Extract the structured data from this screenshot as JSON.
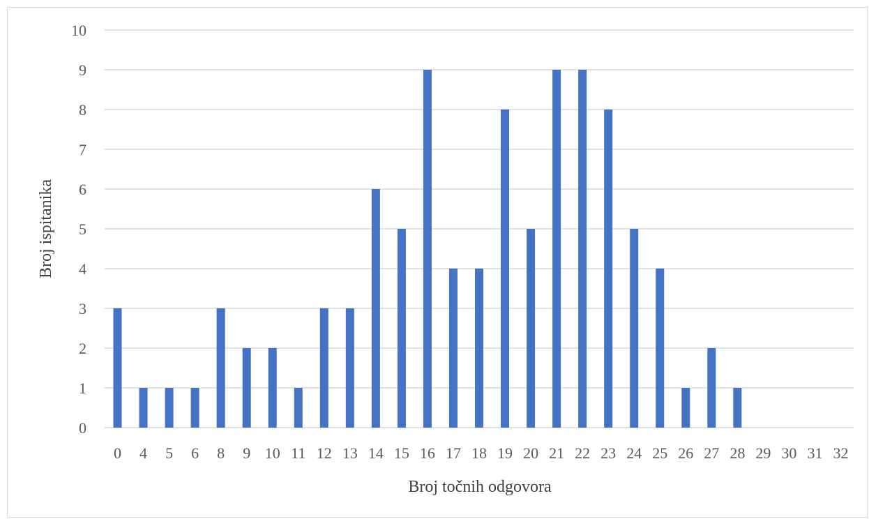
{
  "chart_data": {
    "type": "bar",
    "categories": [
      "0",
      "4",
      "5",
      "6",
      "8",
      "9",
      "10",
      "11",
      "12",
      "13",
      "14",
      "15",
      "16",
      "17",
      "18",
      "19",
      "20",
      "21",
      "22",
      "23",
      "24",
      "25",
      "26",
      "27",
      "28",
      "29",
      "30",
      "31",
      "32"
    ],
    "values": [
      3,
      1,
      1,
      1,
      3,
      2,
      2,
      1,
      3,
      3,
      6,
      5,
      9,
      4,
      4,
      8,
      5,
      9,
      9,
      8,
      5,
      4,
      1,
      2,
      1,
      0,
      0,
      0,
      0
    ],
    "title": "",
    "xlabel": "Broj točnih odgovora",
    "ylabel": "Broj ispitanika",
    "ylim": [
      0,
      10
    ],
    "yticks": [
      0,
      1,
      2,
      3,
      4,
      5,
      6,
      7,
      8,
      9,
      10
    ],
    "grid": true,
    "legend": "none",
    "colors": {
      "bar": "#4472c4",
      "grid": "#d9d9d9",
      "tick_text": "#595959",
      "axis_title": "#404040"
    }
  }
}
